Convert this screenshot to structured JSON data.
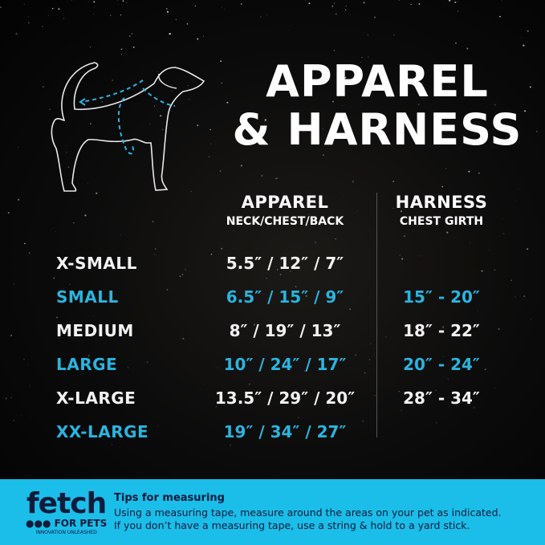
{
  "title": {
    "line1": "APPAREL",
    "line2": "& HARNESS"
  },
  "illustration": {
    "icon": "dog-measurement-outline-icon",
    "accent": "#2ab4df"
  },
  "headers": {
    "apparel": {
      "label": "APPAREL",
      "sub": "NECK/CHEST/BACK"
    },
    "harness": {
      "label": "HARNESS",
      "sub": "CHEST GIRTH"
    }
  },
  "rows": [
    {
      "size": "X-SMALL",
      "apparel": "5.5″ / 12″ / 7″",
      "harness": "",
      "color": "white"
    },
    {
      "size": "SMALL",
      "apparel": "6.5″ / 15″ / 9″",
      "harness": "15″ -  20″",
      "color": "blue"
    },
    {
      "size": "MEDIUM",
      "apparel": "8″ / 19″ / 13″",
      "harness": "18″ -  22″",
      "color": "white"
    },
    {
      "size": "LARGE",
      "apparel": "10″ / 24″ / 17″",
      "harness": "20″ -  24″",
      "color": "blue"
    },
    {
      "size": "X-LARGE",
      "apparel": "13.5″ / 29″ / 20″",
      "harness": "28″ -  34″",
      "color": "white"
    },
    {
      "size": "XX-LARGE",
      "apparel": "19″ / 34″ / 27″",
      "harness": "",
      "color": "blue"
    }
  ],
  "footer": {
    "logo": {
      "brand": "fetch",
      "dots": "●●●",
      "sub": "FOR PETS",
      "tagline": "INNOVATION UNLEASHED"
    },
    "tips_title": "Tips for measuring",
    "tips_line1": "Using a measuring tape, measure around the areas on your pet as indicated.",
    "tips_line2": "If you don’t have a measuring tape, use a string & hold to a yard stick.",
    "bg_color": "#1bbde9"
  }
}
